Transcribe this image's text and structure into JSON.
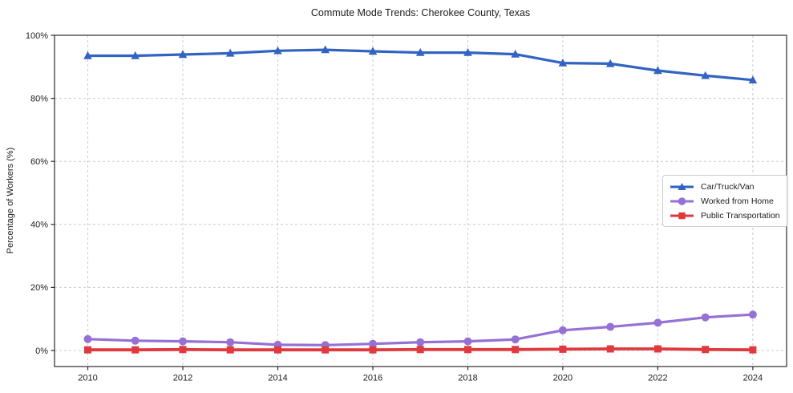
{
  "figure": {
    "background": "#ffffff",
    "grid_color": "#cccccc",
    "axis_color": "#2b2b2b",
    "text_color": "#1c1c1c",
    "legend_border_color": "#cccccc"
  },
  "chart_data": {
    "type": "line",
    "title": "Commute Mode Trends: Cherokee County, Texas",
    "xlabel": "",
    "ylabel": "Percentage of Workers (%)",
    "x": [
      2010,
      2011,
      2012,
      2013,
      2014,
      2015,
      2016,
      2017,
      2018,
      2019,
      2020,
      2021,
      2022,
      2023,
      2024
    ],
    "x_major_ticks": [
      2010,
      2012,
      2014,
      2016,
      2018,
      2020,
      2022,
      2024
    ],
    "y_ticks": [
      0,
      20,
      40,
      60,
      80,
      100
    ],
    "y_tick_suffix": "%",
    "xlim": [
      2009.3,
      2024.71
    ],
    "ylim": [
      -5.1,
      100
    ],
    "grid": "dashed",
    "legend_position": "center-right",
    "series": [
      {
        "name": "Car/Truck/Van",
        "color": "#3263c3",
        "marker": "triangle",
        "line_width": 3.2,
        "values": [
          93.5,
          93.5,
          93.9,
          94.3,
          95.1,
          95.4,
          94.9,
          94.5,
          94.5,
          94.0,
          91.2,
          91.0,
          88.8,
          87.2,
          85.8
        ]
      },
      {
        "name": "Worked from Home",
        "color": "#9671d5",
        "marker": "circle",
        "line_width": 3.2,
        "values": [
          3.6,
          3.1,
          2.9,
          2.6,
          1.8,
          1.7,
          2.1,
          2.6,
          2.9,
          3.5,
          6.4,
          7.5,
          8.8,
          10.5,
          11.4
        ]
      },
      {
        "name": "Public Transportation",
        "color": "#df3b3e",
        "marker": "square",
        "line_width": 3.8,
        "values": [
          0.2,
          0.2,
          0.3,
          0.2,
          0.2,
          0.2,
          0.2,
          0.3,
          0.3,
          0.3,
          0.4,
          0.5,
          0.5,
          0.3,
          0.2
        ]
      }
    ]
  }
}
